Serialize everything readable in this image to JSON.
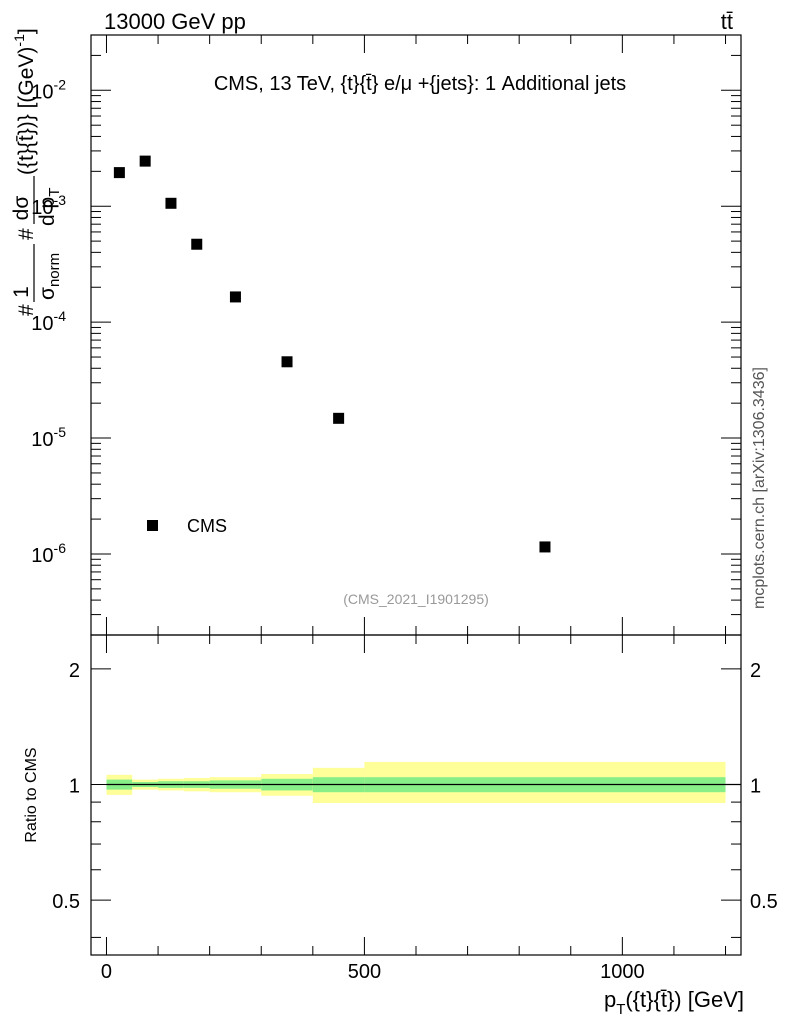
{
  "header": {
    "left": "13000 GeV pp",
    "right": "tt̄"
  },
  "side_label": "mcplots.cern.ch [arXiv:1306.3436]",
  "chart_data": [
    {
      "type": "scatter",
      "title": "CMS, 13 TeV, {t}{t̄} e/μ +{jets}: 1 Additional jets",
      "analysis_tag": "(CMS_2021_I1901295)",
      "yscale": "log",
      "ylim": [
        2e-07,
        0.03
      ],
      "xlim": [
        -30,
        1230
      ],
      "ylabel_parts": {
        "frac_num": "1",
        "frac_den": "σ",
        "frac_den_sub": "norm",
        "d_num": "dσ",
        "d_den": "d p",
        "d_den_sub": "T",
        "obs": "({t}{t̄})}",
        "obs_tail": " [(GeV)",
        "exp": "-1",
        "close": "]",
        "hash": "#"
      },
      "y_ticks": [
        {
          "base": "10",
          "exp": "-2",
          "value": 0.01
        },
        {
          "base": "10",
          "exp": "-3",
          "value": 0.001
        },
        {
          "base": "10",
          "exp": "-4",
          "value": 0.0001
        },
        {
          "base": "10",
          "exp": "-5",
          "value": 1e-05
        },
        {
          "base": "10",
          "exp": "-6",
          "value": 1e-06
        }
      ],
      "series": [
        {
          "name": "CMS",
          "marker": "square",
          "x": [
            25,
            75,
            125,
            175,
            250,
            350,
            450,
            850
          ],
          "y": [
            0.00195,
            0.00245,
            0.00106,
            0.00047,
            0.000165,
            4.55e-05,
            1.48e-05,
            1.15e-06
          ]
        }
      ],
      "legend": {
        "position": "bottom-left",
        "label": "CMS"
      }
    },
    {
      "type": "area",
      "ylabel": "Ratio to CMS",
      "xlabel_parts": {
        "base": "p",
        "sub": "T",
        "rest": "({t}{t̄}) [GeV]"
      },
      "ylim": [
        0.36,
        2.45
      ],
      "yscale": "log",
      "y_ticks": [
        {
          "label": "2",
          "value": 2
        },
        {
          "label": "1",
          "value": 1
        },
        {
          "label": "0.5",
          "value": 0.5
        }
      ],
      "x_ticks": [
        {
          "label": "0",
          "value": 0
        },
        {
          "label": "500",
          "value": 500
        },
        {
          "label": "1000",
          "value": 1000
        }
      ],
      "bin_edges": [
        0,
        50,
        100,
        150,
        200,
        300,
        400,
        500,
        1200
      ],
      "band_outer": [
        [
          0.94,
          1.06
        ],
        [
          0.97,
          1.03
        ],
        [
          0.965,
          1.035
        ],
        [
          0.96,
          1.04
        ],
        [
          0.955,
          1.045
        ],
        [
          0.935,
          1.065
        ],
        [
          0.895,
          1.105
        ],
        [
          0.895,
          1.145
        ]
      ],
      "band_inner": [
        [
          0.97,
          1.03
        ],
        [
          0.985,
          1.015
        ],
        [
          0.98,
          1.02
        ],
        [
          0.98,
          1.02
        ],
        [
          0.975,
          1.025
        ],
        [
          0.965,
          1.035
        ],
        [
          0.955,
          1.045
        ],
        [
          0.955,
          1.045
        ]
      ],
      "colors": {
        "outer": "#ffff99",
        "inner": "#88ee88",
        "line": "#000000"
      }
    }
  ]
}
